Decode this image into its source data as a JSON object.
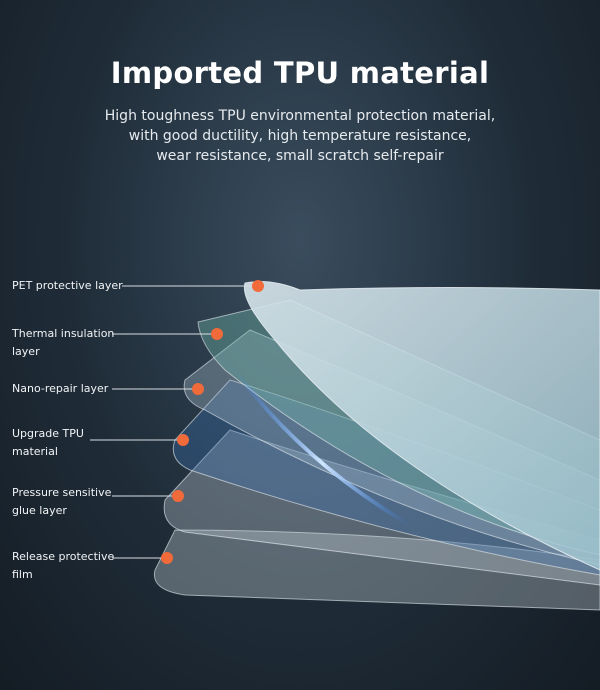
{
  "header": {
    "title": "Imported TPU material",
    "subtitle": [
      "High toughness TPU environmental protection material,",
      "with good ductility, high temperature resistance,",
      "wear resistance, small scratch self-repair"
    ]
  },
  "layers": [
    {
      "label": "PET protective layer"
    },
    {
      "label": "Thermal insulation layer"
    },
    {
      "label": "Nano-repair layer"
    },
    {
      "label": "Upgrade TPU material"
    },
    {
      "label": "Pressure sensitive glue layer"
    },
    {
      "label": "Release protective film"
    }
  ]
}
